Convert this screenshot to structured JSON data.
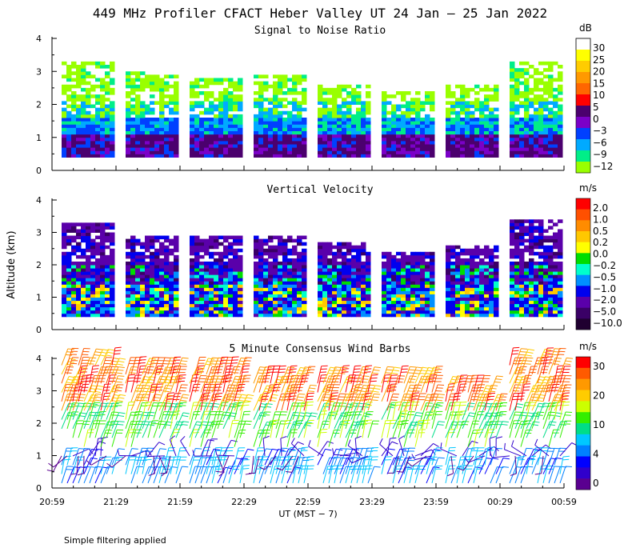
{
  "title": "449 MHz Profiler CFACT Heber Valley UT 24 Jan – 25 Jan 2022",
  "footer_note": "Simple filtering applied",
  "chart_data": [
    {
      "type": "heatmap",
      "title": "Signal to Noise Ratio",
      "ylabel": "",
      "ylim": [
        0,
        4
      ],
      "yticks": [
        "0",
        "1",
        "2",
        "3",
        "4"
      ],
      "colorbar": {
        "unit": "dB",
        "labels": [
          "30",
          "25",
          "20",
          "15",
          "10",
          "5",
          "0",
          "−3",
          "−6",
          "−9",
          "−12"
        ],
        "colors": [
          "#ffffff",
          "#ffff00",
          "#ffcc00",
          "#ff9900",
          "#ff6600",
          "#ff0000",
          "#4b006e",
          "#7b00c8",
          "#0040ff",
          "#00aaff",
          "#00ee88",
          "#99ff00"
        ]
      },
      "segments": [
        {
          "x0": "20:59",
          "x1": "21:29",
          "top_km": 3.3
        },
        {
          "x0": "21:29",
          "x1": "21:59",
          "top_km": 3.0
        },
        {
          "x0": "21:59",
          "x1": "22:29",
          "top_km": 2.8
        },
        {
          "x0": "22:29",
          "x1": "22:59",
          "top_km": 2.9
        },
        {
          "x0": "22:59",
          "x1": "23:29",
          "top_km": 2.6
        },
        {
          "x0": "23:29",
          "x1": "23:59",
          "top_km": 2.4
        },
        {
          "x0": "23:59",
          "x1": "00:29",
          "top_km": 2.6
        },
        {
          "x0": "00:29",
          "x1": "00:59",
          "top_km": 3.3
        }
      ]
    },
    {
      "type": "heatmap",
      "title": "Vertical Velocity",
      "ylabel": "Altitude (km)",
      "ylim": [
        0,
        4
      ],
      "yticks": [
        "0",
        "1",
        "2",
        "3",
        "4"
      ],
      "colorbar": {
        "unit": "m/s",
        "labels": [
          "2.0",
          "1.0",
          "0.5",
          "0.2",
          "0.0",
          "−0.2",
          "−0.5",
          "−1.0",
          "−2.0",
          "−5.0",
          "−10.0"
        ],
        "colors": [
          "#ff0000",
          "#ff5000",
          "#ff8c00",
          "#ffc800",
          "#ffff00",
          "#00dd00",
          "#00ffcc",
          "#0090ff",
          "#0000ee",
          "#5a00aa",
          "#3a0066",
          "#200030"
        ]
      },
      "segments": [
        {
          "x0": "20:59",
          "x1": "21:29",
          "top_km": 3.3
        },
        {
          "x0": "21:29",
          "x1": "21:59",
          "top_km": 2.9
        },
        {
          "x0": "21:59",
          "x1": "22:29",
          "top_km": 2.9
        },
        {
          "x0": "22:29",
          "x1": "22:59",
          "top_km": 2.9
        },
        {
          "x0": "22:59",
          "x1": "23:29",
          "top_km": 2.7
        },
        {
          "x0": "23:29",
          "x1": "23:59",
          "top_km": 2.4
        },
        {
          "x0": "23:59",
          "x1": "00:29",
          "top_km": 2.6
        },
        {
          "x0": "00:29",
          "x1": "00:59",
          "top_km": 3.4
        }
      ]
    },
    {
      "type": "scatter",
      "title": "5 Minute Consensus Wind Barbs",
      "ylabel": "",
      "ylim": [
        0,
        4
      ],
      "yticks": [
        "0",
        "1",
        "2",
        "3",
        "4"
      ],
      "xlabel": "UT  (MST − 7)",
      "xticks": [
        "20:59",
        "21:29",
        "21:59",
        "22:29",
        "22:59",
        "23:29",
        "23:59",
        "00:29",
        "00:59"
      ],
      "colorbar": {
        "unit": "m/s",
        "labels": [
          "30",
          "20",
          "10",
          "4",
          "0"
        ],
        "colors": [
          "#ff0000",
          "#ff5a00",
          "#ff9900",
          "#ffcc00",
          "#ccff00",
          "#33ee00",
          "#00dd88",
          "#00c8ff",
          "#0080ff",
          "#0000ff",
          "#3000cc",
          "#5a0090"
        ]
      },
      "segments": [
        {
          "x0": "20:59",
          "x1": "21:29",
          "top_km": 3.8
        },
        {
          "x0": "21:29",
          "x1": "21:59",
          "top_km": 3.6
        },
        {
          "x0": "21:59",
          "x1": "22:29",
          "top_km": 3.6
        },
        {
          "x0": "22:29",
          "x1": "22:59",
          "top_km": 3.3
        },
        {
          "x0": "22:59",
          "x1": "23:29",
          "top_km": 3.4
        },
        {
          "x0": "23:29",
          "x1": "23:59",
          "top_km": 3.4
        },
        {
          "x0": "23:59",
          "x1": "00:29",
          "top_km": 3.0
        },
        {
          "x0": "00:29",
          "x1": "00:59",
          "top_km": 3.9
        }
      ]
    }
  ]
}
